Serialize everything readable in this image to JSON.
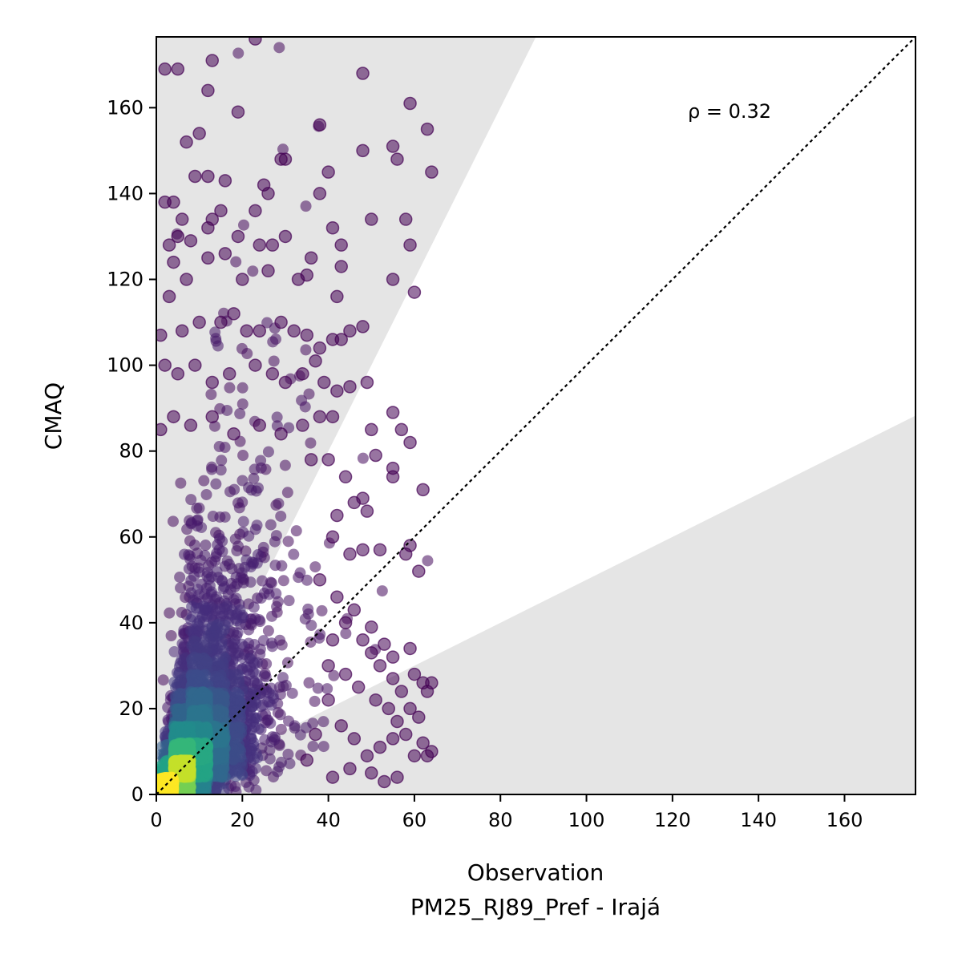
{
  "chart_data": {
    "type": "scatter",
    "xlabel": "Observation",
    "xlabel_line2": "PM25_RJ89_Pref - Irajá",
    "ylabel": "CMAQ",
    "annotation": "ρ = 0.32",
    "xlim": [
      0,
      176.5
    ],
    "ylim": [
      0,
      176.5
    ],
    "xticks": [
      "0",
      "20",
      "40",
      "60",
      "80",
      "100",
      "120",
      "140",
      "160"
    ],
    "yticks": [
      "0",
      "20",
      "40",
      "60",
      "80",
      "100",
      "120",
      "140",
      "160"
    ],
    "grid": false,
    "reference_line": {
      "style": "dotted",
      "slope": 1,
      "color": "#000000"
    },
    "shaded_regions": {
      "color": "#e5e5e5",
      "upper_slope": 2.0,
      "lower_slope": 0.5
    },
    "colormap": "viridis",
    "outlier_points": [
      [
        2,
        169
      ],
      [
        5,
        169
      ],
      [
        13,
        171
      ],
      [
        23,
        176
      ],
      [
        48,
        168
      ],
      [
        7,
        152
      ],
      [
        10,
        154
      ],
      [
        12,
        164
      ],
      [
        19,
        159
      ],
      [
        30,
        148
      ],
      [
        29,
        148
      ],
      [
        48,
        150
      ],
      [
        55,
        151
      ],
      [
        59,
        161
      ],
      [
        63,
        155
      ],
      [
        56,
        148
      ],
      [
        64,
        145
      ],
      [
        38,
        156
      ],
      [
        9,
        144
      ],
      [
        12,
        144
      ],
      [
        16,
        143
      ],
      [
        25,
        142
      ],
      [
        26,
        140
      ],
      [
        40,
        145
      ],
      [
        38,
        140
      ],
      [
        4,
        138
      ],
      [
        2,
        138
      ],
      [
        6,
        134
      ],
      [
        13,
        134
      ],
      [
        15,
        136
      ],
      [
        23,
        136
      ],
      [
        50,
        134
      ],
      [
        58,
        134
      ],
      [
        59,
        128
      ],
      [
        55,
        120
      ],
      [
        60,
        117
      ],
      [
        3,
        128
      ],
      [
        5,
        130
      ],
      [
        8,
        129
      ],
      [
        12,
        132
      ],
      [
        19,
        130
      ],
      [
        24,
        128
      ],
      [
        27,
        128
      ],
      [
        30,
        130
      ],
      [
        36,
        125
      ],
      [
        41,
        132
      ],
      [
        43,
        128
      ],
      [
        43,
        123
      ],
      [
        7,
        120
      ],
      [
        12,
        125
      ],
      [
        4,
        124
      ],
      [
        16,
        126
      ],
      [
        20,
        120
      ],
      [
        26,
        122
      ],
      [
        33,
        120
      ],
      [
        35,
        121
      ],
      [
        42,
        116
      ],
      [
        1,
        107
      ],
      [
        3,
        116
      ],
      [
        6,
        108
      ],
      [
        10,
        110
      ],
      [
        15,
        110
      ],
      [
        18,
        112
      ],
      [
        21,
        108
      ],
      [
        24,
        108
      ],
      [
        29,
        110
      ],
      [
        32,
        108
      ],
      [
        35,
        107
      ],
      [
        41,
        106
      ],
      [
        45,
        108
      ],
      [
        48,
        109
      ],
      [
        38,
        104
      ],
      [
        43,
        106
      ],
      [
        2,
        100
      ],
      [
        5,
        98
      ],
      [
        9,
        100
      ],
      [
        13,
        96
      ],
      [
        17,
        98
      ],
      [
        23,
        100
      ],
      [
        27,
        98
      ],
      [
        30,
        96
      ],
      [
        34,
        98
      ],
      [
        39,
        96
      ],
      [
        42,
        94
      ],
      [
        45,
        95
      ],
      [
        49,
        96
      ],
      [
        37,
        101
      ],
      [
        1,
        85
      ],
      [
        4,
        88
      ],
      [
        8,
        86
      ],
      [
        13,
        88
      ],
      [
        18,
        84
      ],
      [
        24,
        86
      ],
      [
        29,
        84
      ],
      [
        34,
        86
      ],
      [
        38,
        88
      ],
      [
        41,
        88
      ],
      [
        50,
        85
      ],
      [
        51,
        79
      ],
      [
        55,
        89
      ],
      [
        57,
        85
      ],
      [
        59,
        82
      ],
      [
        62,
        71
      ],
      [
        55,
        76
      ],
      [
        55,
        74
      ],
      [
        36,
        78
      ],
      [
        40,
        78
      ],
      [
        44,
        74
      ],
      [
        48,
        69
      ],
      [
        49,
        66
      ],
      [
        46,
        68
      ],
      [
        42,
        65
      ],
      [
        41,
        60
      ],
      [
        45,
        56
      ],
      [
        48,
        57
      ],
      [
        52,
        57
      ],
      [
        59,
        58
      ],
      [
        61,
        52
      ],
      [
        58,
        56
      ],
      [
        38,
        50
      ],
      [
        42,
        46
      ],
      [
        46,
        43
      ],
      [
        50,
        39
      ],
      [
        53,
        35
      ],
      [
        55,
        32
      ],
      [
        59,
        34
      ],
      [
        60,
        28
      ],
      [
        62,
        26
      ],
      [
        63,
        24
      ],
      [
        64,
        26
      ],
      [
        57,
        24
      ],
      [
        55,
        27
      ],
      [
        52,
        30
      ],
      [
        50,
        33
      ],
      [
        48,
        36
      ],
      [
        44,
        40
      ],
      [
        41,
        36
      ],
      [
        40,
        30
      ],
      [
        44,
        28
      ],
      [
        47,
        25
      ],
      [
        51,
        22
      ],
      [
        54,
        20
      ],
      [
        56,
        17
      ],
      [
        58,
        14
      ],
      [
        60,
        9
      ],
      [
        62,
        12
      ],
      [
        63,
        9
      ],
      [
        64,
        10
      ],
      [
        61,
        18
      ],
      [
        59,
        20
      ],
      [
        55,
        13
      ],
      [
        52,
        11
      ],
      [
        49,
        9
      ],
      [
        46,
        13
      ],
      [
        43,
        16
      ],
      [
        40,
        22
      ],
      [
        37,
        14
      ],
      [
        35,
        8
      ],
      [
        41,
        4
      ],
      [
        45,
        6
      ],
      [
        50,
        5
      ],
      [
        56,
        4
      ],
      [
        53,
        3
      ]
    ]
  }
}
